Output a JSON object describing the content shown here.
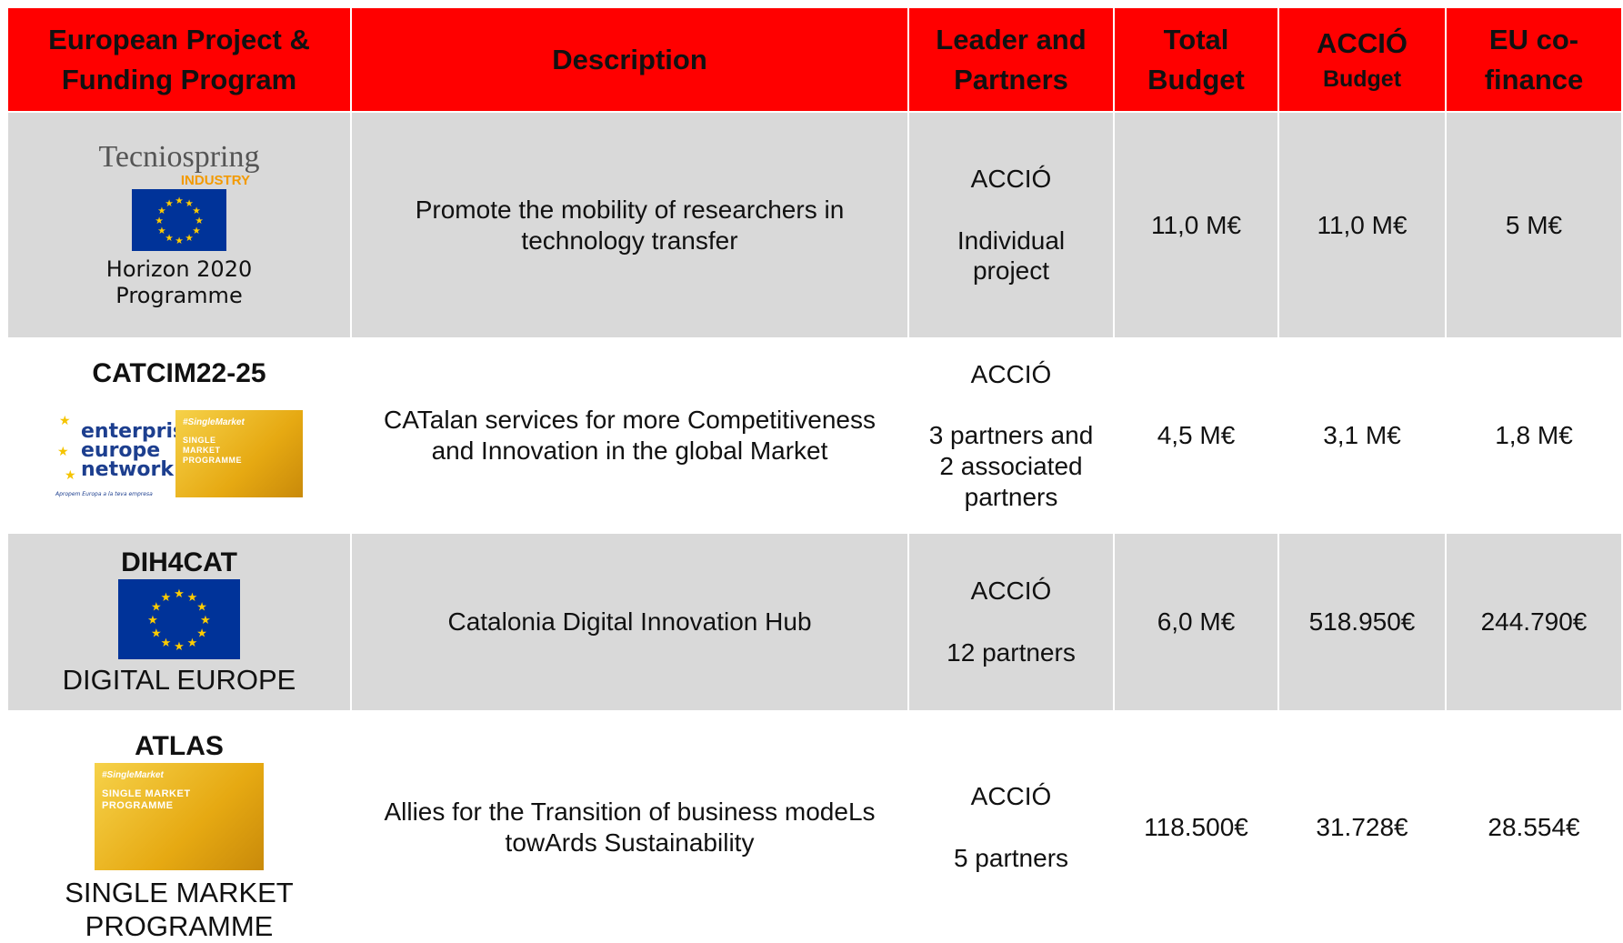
{
  "header": {
    "columns": [
      "European Project & Funding Program",
      "Description",
      "Leader and Partners",
      "Total Budget",
      {
        "title": "ACCIÓ",
        "subtitle": "Budget"
      },
      "EU co-finance"
    ]
  },
  "rows": [
    {
      "program": {
        "logo_text": "Tecniospring",
        "logo_subtext": "INDUSTRY",
        "caption": "Horizon 2020 Programme"
      },
      "description": "Promote the mobility of researchers in technology transfer",
      "leader": "ACCIÓ",
      "partners": "Individual project",
      "total_budget": "11,0 M€",
      "accio_budget": "11,0 M€",
      "eu_cofinance": "5 M€"
    },
    {
      "program": {
        "name": "CATCIM22-25",
        "een_logo": [
          "enterprise",
          "europe",
          "network",
          "Apropem Europa a la teva empresa"
        ],
        "sm_logo": [
          "#SingleMarket",
          "SINGLE MARKET PROGRAMME"
        ]
      },
      "description": "CATalan services for more Competitiveness and Innovation in the global Market",
      "leader": "ACCIÓ",
      "partners": "3 partners and 2 associated partners",
      "total_budget": "4,5 M€",
      "accio_budget": "3,1 M€",
      "eu_cofinance": "1,8 M€"
    },
    {
      "program": {
        "name": "DIH4CAT",
        "caption": "DIGITAL EUROPE"
      },
      "description": "Catalonia Digital Innovation Hub",
      "leader": "ACCIÓ",
      "partners": "12 partners",
      "total_budget": "6,0 M€",
      "accio_budget": "518.950€",
      "eu_cofinance": "244.790€"
    },
    {
      "program": {
        "name": "ATLAS",
        "sm_logo": [
          "#SingleMarket",
          "SINGLE MARKET PROGRAMME"
        ],
        "caption": "SINGLE MARKET PROGRAMME"
      },
      "description": "Allies for the Transition of business modeLs towArds Sustainability",
      "leader": "ACCIÓ",
      "partners": "5 partners",
      "total_budget": "118.500€",
      "accio_budget": "31.728€",
      "eu_cofinance": "28.554€"
    }
  ]
}
